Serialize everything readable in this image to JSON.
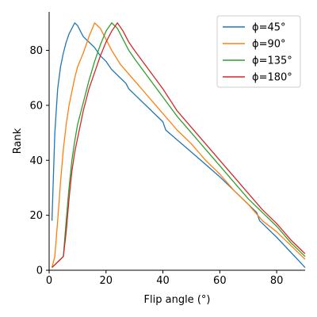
{
  "colors": {
    "series": [
      "#1f77b4",
      "#ff7f0e",
      "#2ca02c",
      "#d62728"
    ],
    "axis": "#000000",
    "background": "#ffffff"
  },
  "chart_data": {
    "type": "line",
    "title": "",
    "xlabel": "Flip angle (°)",
    "ylabel": "Rank",
    "xlim": [
      0,
      90
    ],
    "ylim": [
      0,
      94
    ],
    "xticks": [
      0,
      20,
      40,
      60,
      80
    ],
    "yticks": [
      0,
      20,
      40,
      60,
      80
    ],
    "grid": false,
    "legend_position": "top-right",
    "series": [
      {
        "name": "ϕ=45°",
        "x": [
          1,
          2,
          3,
          4,
          5,
          6,
          7,
          8,
          9,
          10,
          11,
          12,
          14,
          16,
          18,
          20,
          22,
          25,
          27,
          28,
          30,
          35,
          40,
          41,
          50,
          60,
          70,
          73,
          74,
          80,
          90
        ],
        "y": [
          18,
          50,
          66,
          74,
          79,
          83,
          86,
          88,
          90,
          89,
          87,
          85,
          83,
          81,
          78,
          76,
          73,
          70,
          68,
          66,
          64,
          59,
          54,
          51,
          43,
          34,
          24,
          21,
          18,
          12,
          1
        ]
      },
      {
        "name": "ϕ=90°",
        "x": [
          1,
          2,
          3,
          4,
          5,
          6,
          7,
          8,
          9,
          10,
          12,
          14,
          16,
          18,
          20,
          22,
          25,
          30,
          35,
          40,
          45,
          50,
          55,
          60,
          65,
          70,
          75,
          80,
          85,
          90
        ],
        "y": [
          1,
          5,
          18,
          32,
          44,
          53,
          60,
          65,
          70,
          74,
          79,
          85,
          90,
          88,
          84,
          80,
          75,
          69,
          63,
          57,
          51,
          46,
          40,
          35,
          29,
          24,
          18,
          14,
          9,
          4
        ]
      },
      {
        "name": "ϕ=135°",
        "x": [
          1,
          2,
          3,
          4,
          5,
          6,
          7,
          8,
          9,
          10,
          12,
          14,
          16,
          18,
          20,
          22,
          24,
          26,
          28,
          30,
          35,
          40,
          45,
          50,
          55,
          60,
          65,
          70,
          75,
          80,
          85,
          90
        ],
        "y": [
          1,
          2,
          3,
          4,
          5,
          18,
          30,
          40,
          47,
          53,
          61,
          69,
          76,
          82,
          87,
          90,
          88,
          84,
          80,
          77,
          70,
          63,
          56,
          50,
          44,
          38,
          32,
          26,
          21,
          16,
          10,
          5
        ]
      },
      {
        "name": "ϕ=180°",
        "x": [
          1,
          2,
          3,
          4,
          5,
          6,
          7,
          8,
          9,
          10,
          12,
          14,
          16,
          18,
          20,
          22,
          24,
          26,
          28,
          30,
          35,
          40,
          45,
          50,
          55,
          60,
          65,
          70,
          75,
          80,
          85,
          90
        ],
        "y": [
          1,
          2,
          3,
          4,
          5,
          14,
          26,
          36,
          43,
          48,
          58,
          66,
          72,
          78,
          83,
          87,
          90,
          87,
          83,
          80,
          73,
          66,
          58,
          52,
          46,
          40,
          34,
          28,
          22,
          17,
          11,
          6
        ]
      }
    ]
  }
}
